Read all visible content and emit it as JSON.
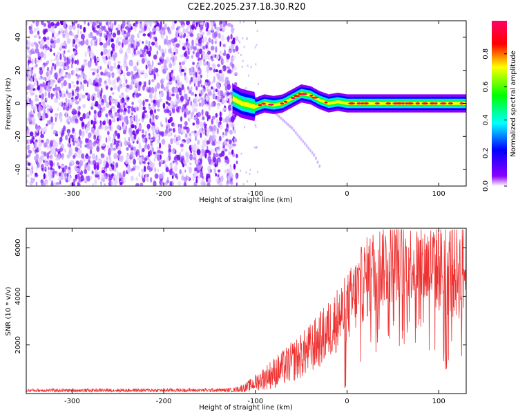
{
  "chart_data": [
    {
      "type": "heatmap",
      "title": "C2E2.2025.237.18.30.R20",
      "xlabel": "Height of straight line (km)",
      "ylabel": "Frequency (Hz)",
      "xlim": [
        -350,
        130
      ],
      "ylim": [
        -50,
        50
      ],
      "xticks": [
        -300,
        -200,
        -100,
        0,
        100
      ],
      "yticks": [
        -40,
        -20,
        0,
        20,
        40
      ],
      "colorbar": {
        "label": "Normalized spectral amplitude",
        "range": [
          0,
          1
        ],
        "ticks": [
          "0.0",
          "0.2",
          "0.4",
          "0.6",
          "0.8"
        ],
        "tick_values": [
          0.0,
          0.2,
          0.4,
          0.6,
          0.8
        ],
        "colors": [
          "#ffffff",
          "#8b00ff",
          "#0000ff",
          "#00ffff",
          "#00ff00",
          "#ffff00",
          "#ff0000",
          "#ff0066"
        ]
      },
      "noise_region_x": [
        -350,
        -120
      ],
      "signal_ridge": {
        "x": [
          -125,
          -115,
          -100,
          -90,
          -80,
          -70,
          -60,
          -50,
          -40,
          -30,
          -20,
          -10,
          0,
          10,
          20,
          40,
          60,
          80,
          100,
          130
        ],
        "y": [
          3,
          0,
          -2,
          0,
          -1,
          0,
          3,
          6,
          5,
          2,
          0,
          1,
          0,
          0,
          0,
          0,
          0,
          0,
          0,
          0
        ]
      },
      "faint_trace": {
        "x": [
          -80,
          -60,
          -45,
          -35,
          -30
        ],
        "y": [
          -5,
          -15,
          -25,
          -32,
          -38
        ]
      }
    },
    {
      "type": "line",
      "xlabel": "Height of straight line (km)",
      "ylabel": "SNR (10 * v/v)",
      "xlim": [
        -350,
        130
      ],
      "ylim": [
        0,
        6800
      ],
      "xticks": [
        -300,
        -200,
        -100,
        0,
        100
      ],
      "yticks": [
        2000,
        4000,
        6000
      ],
      "series": [
        {
          "name": "SNR",
          "color": "#ee3333",
          "envelope_x": [
            -350,
            -125,
            -110,
            -100,
            -90,
            -80,
            -70,
            -60,
            -50,
            -40,
            -30,
            -20,
            -10,
            0,
            10,
            20,
            30,
            40,
            50,
            60,
            70,
            80,
            90,
            100,
            110,
            120,
            130
          ],
          "mean": [
            130,
            140,
            250,
            450,
            650,
            850,
            1050,
            1300,
            1550,
            1850,
            2200,
            2600,
            3100,
            3500,
            4100,
            4700,
            5100,
            5300,
            5400,
            5450,
            5400,
            5300,
            5250,
            5200,
            5100,
            5000,
            5000
          ],
          "spread": [
            70,
            80,
            200,
            350,
            500,
            650,
            750,
            850,
            950,
            1050,
            1150,
            1250,
            1350,
            1450,
            1600,
            1700,
            1800,
            1800,
            1700,
            1600,
            1600,
            1700,
            1800,
            1900,
            2000,
            2000,
            2000
          ]
        }
      ]
    }
  ]
}
